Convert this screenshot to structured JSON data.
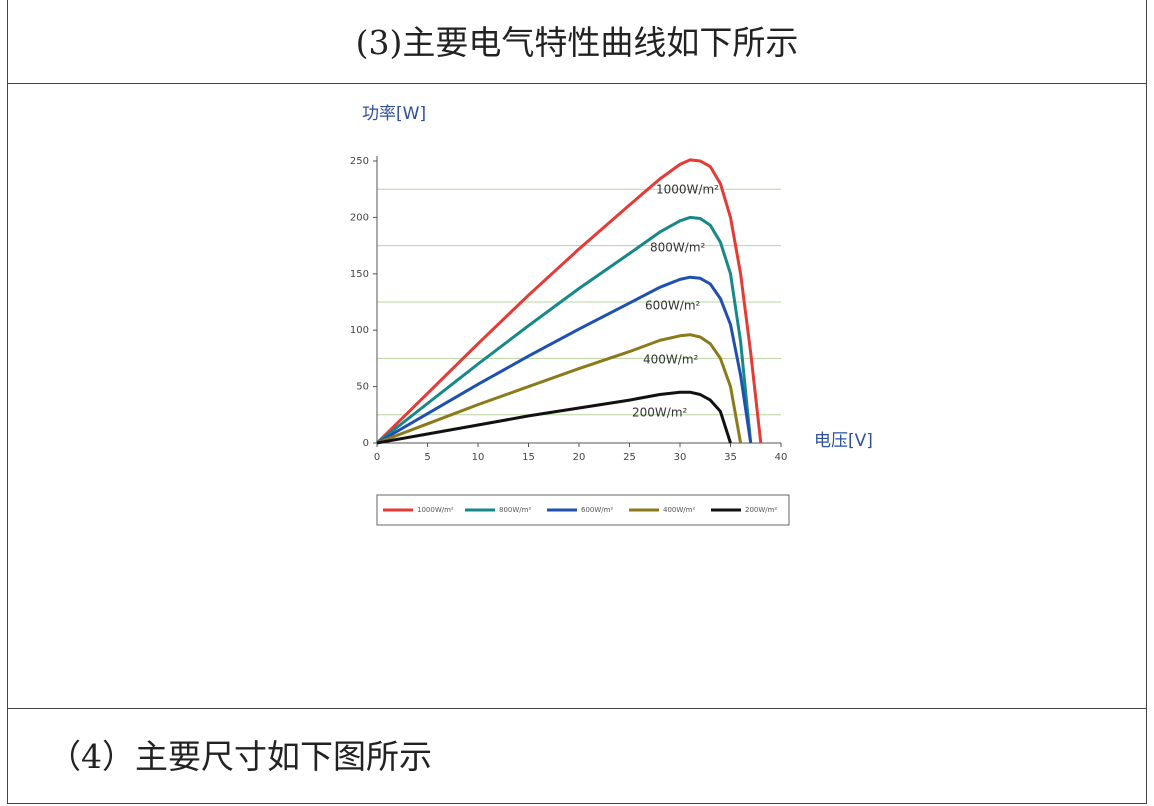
{
  "header": {
    "title": "(3)主要电气特性曲线如下所示"
  },
  "chart_data": {
    "type": "line",
    "ylabel": "功率[W]",
    "xlabel": "电压[V]",
    "x": [
      0,
      5,
      10,
      15,
      20,
      25,
      28,
      30,
      31,
      32,
      33,
      34,
      35,
      36,
      37,
      38
    ],
    "xlim": [
      0,
      40
    ],
    "xticks": [
      0,
      5,
      10,
      15,
      20,
      25,
      30,
      35,
      40
    ],
    "ylim": [
      0,
      250
    ],
    "yticks": [
      0,
      50,
      100,
      150,
      200,
      250
    ],
    "grid_lines": [
      25,
      75,
      125,
      175,
      225
    ],
    "grid_color": "#b8d4a0",
    "series": [
      {
        "name": "1000W/m²",
        "color": "#e63a35",
        "values": [
          0,
          44,
          88,
          131,
          172,
          211,
          234,
          247,
          251,
          250,
          245,
          230,
          200,
          150,
          80,
          0
        ]
      },
      {
        "name": "800W/m²",
        "color": "#16888a",
        "values": [
          0,
          35,
          70,
          104,
          137,
          168,
          187,
          197,
          200,
          199,
          193,
          178,
          150,
          90,
          0,
          null
        ]
      },
      {
        "name": "600W/m²",
        "color": "#1f4fb0",
        "values": [
          0,
          26,
          52,
          77,
          101,
          124,
          138,
          145,
          147,
          146,
          141,
          128,
          105,
          60,
          0,
          null
        ]
      },
      {
        "name": "400W/m²",
        "color": "#8a7a1c",
        "values": [
          0,
          17,
          34,
          50,
          66,
          81,
          91,
          95,
          96,
          94,
          88,
          75,
          50,
          0,
          null,
          null
        ]
      },
      {
        "name": "200W/m²",
        "color": "#111111",
        "values": [
          0,
          8,
          16,
          24,
          31,
          38,
          43,
          45,
          45,
          43,
          38,
          28,
          0,
          null,
          null,
          null
        ]
      }
    ]
  },
  "footer": {
    "title": "（4）主要尺寸如下图所示"
  }
}
